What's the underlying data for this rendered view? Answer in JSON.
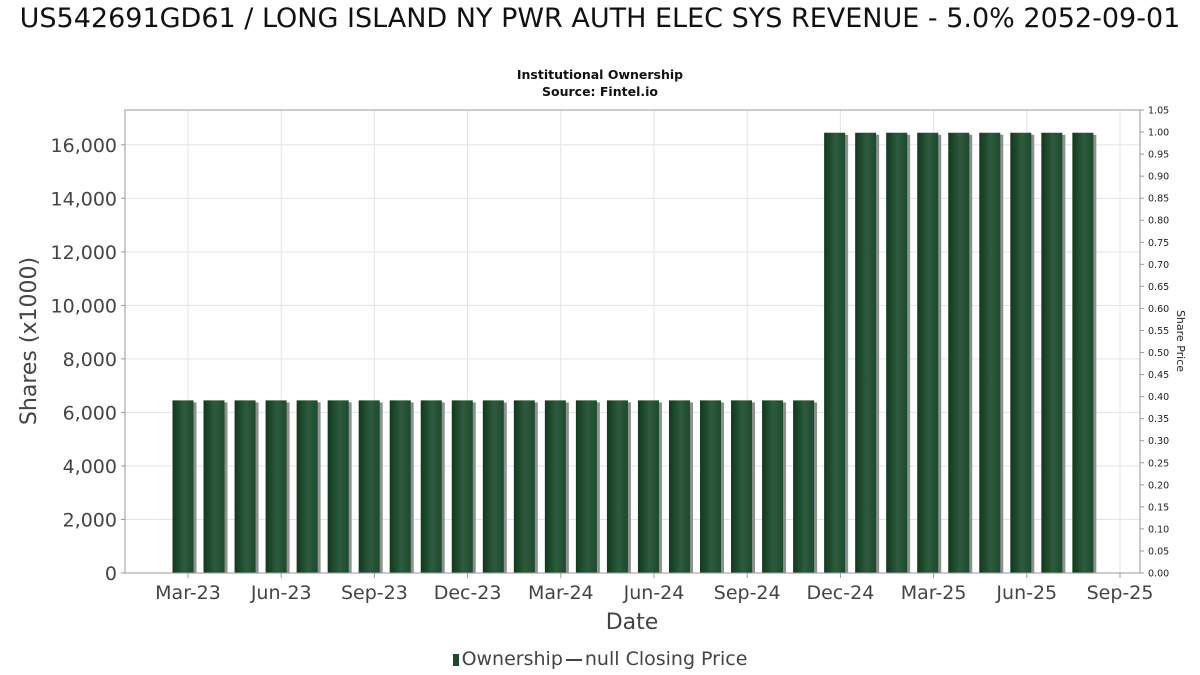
{
  "chart_data": {
    "type": "bar",
    "title": "US542691GD61 / LONG ISLAND NY PWR AUTH ELEC SYS REVENUE - 5.0% 2052-09-01",
    "subtitle": "Institutional Ownership",
    "source": "Source: Fintel.io",
    "xlabel": "Date",
    "ylabel": "Shares (x1000)",
    "y2label": "Share Price",
    "x_ticks": [
      "Mar-23",
      "Jun-23",
      "Sep-23",
      "Dec-23",
      "Mar-24",
      "Jun-24",
      "Sep-24",
      "Dec-24",
      "Mar-25",
      "Jun-25",
      "Sep-25"
    ],
    "y_ticks": [
      "0",
      "2,000",
      "4,000",
      "6,000",
      "8,000",
      "10,000",
      "12,000",
      "14,000",
      "16,000"
    ],
    "y2_ticks": [
      "0.00",
      "0.05",
      "0.10",
      "0.15",
      "0.20",
      "0.25",
      "0.30",
      "0.35",
      "0.40",
      "0.45",
      "0.50",
      "0.55",
      "0.60",
      "0.65",
      "0.70",
      "0.75",
      "0.80",
      "0.85",
      "0.90",
      "0.95",
      "1.00",
      "1.05"
    ],
    "ylim": [
      0,
      17300
    ],
    "y2lim": [
      0,
      1.05
    ],
    "grid": true,
    "legend_position": "bottom",
    "series": [
      {
        "name": "Ownership",
        "color": "#1d4a2c",
        "values": [
          6450,
          6450,
          6450,
          6450,
          6450,
          6450,
          6450,
          6450,
          6450,
          6450,
          6450,
          6450,
          6450,
          6450,
          6450,
          6450,
          6450,
          6450,
          6450,
          6450,
          6450,
          16450,
          16450,
          16450,
          16450,
          16450,
          16450,
          16450,
          16450,
          16450
        ]
      }
    ],
    "legend": {
      "ownership_label": "Ownership",
      "price_label": "null Closing Price"
    }
  }
}
